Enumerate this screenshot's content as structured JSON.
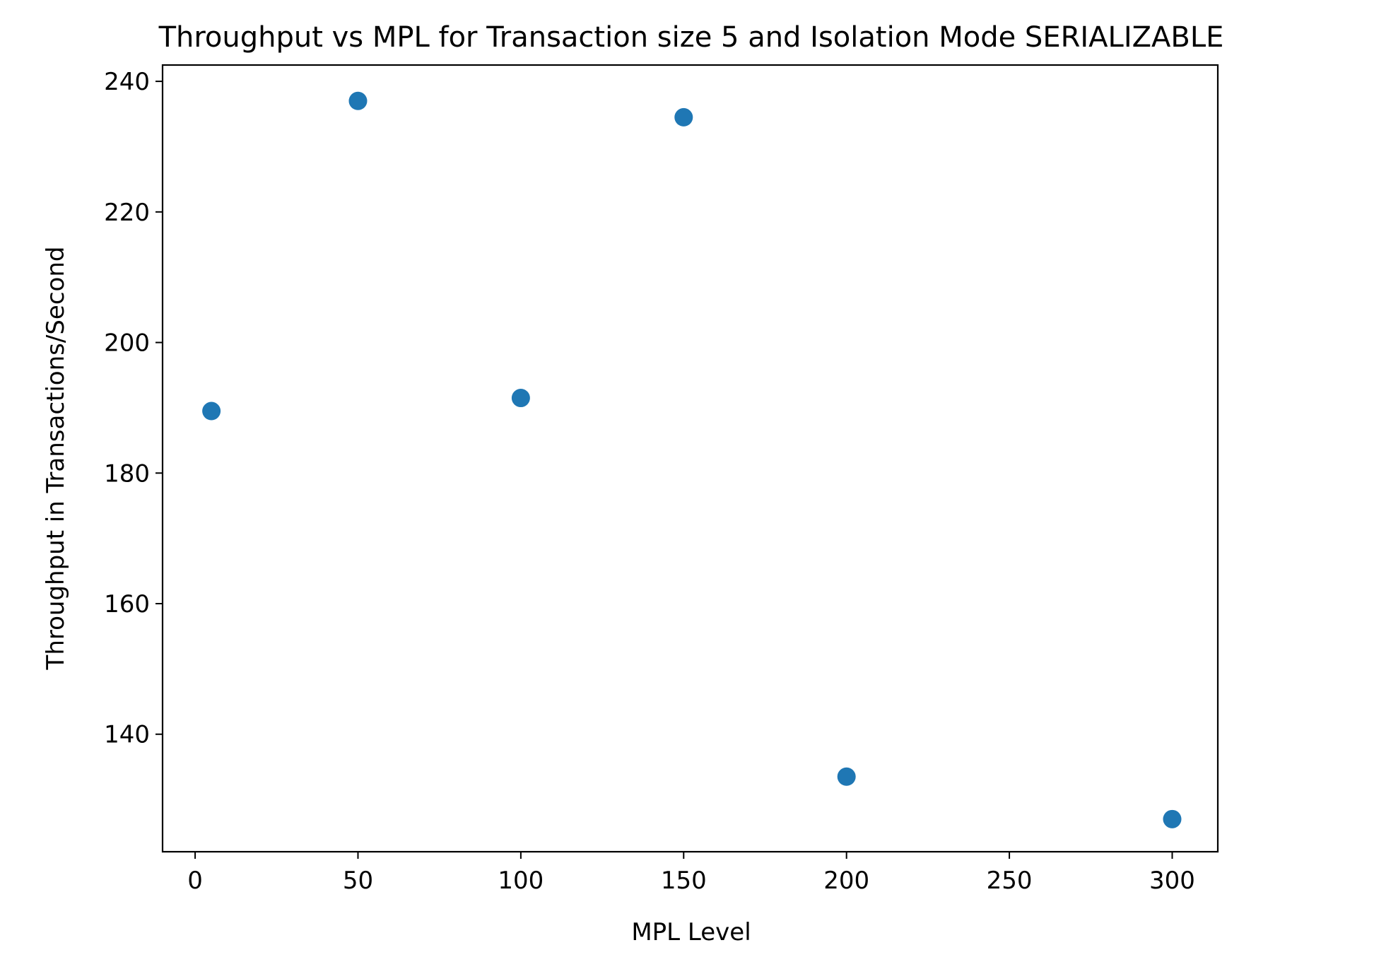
{
  "chart_data": {
    "type": "scatter",
    "title": "Throughput vs MPL for Transaction size 5 and Isolation Mode SERIALIZABLE",
    "xlabel": "MPL Level",
    "ylabel": "Throughput in Transactions/Second",
    "xlim": [
      -10,
      314
    ],
    "ylim": [
      122,
      242.5
    ],
    "xticks": [
      0,
      50,
      100,
      150,
      200,
      250,
      300
    ],
    "yticks": [
      140,
      160,
      180,
      200,
      220,
      240
    ],
    "grid": false,
    "legend": "none",
    "series": [
      {
        "color": "#1f77b4",
        "points": [
          {
            "x": 5,
            "y": 189.5
          },
          {
            "x": 50,
            "y": 237
          },
          {
            "x": 100,
            "y": 191.5
          },
          {
            "x": 150,
            "y": 234.5
          },
          {
            "x": 200,
            "y": 133.5
          },
          {
            "x": 300,
            "y": 127
          }
        ]
      }
    ]
  }
}
